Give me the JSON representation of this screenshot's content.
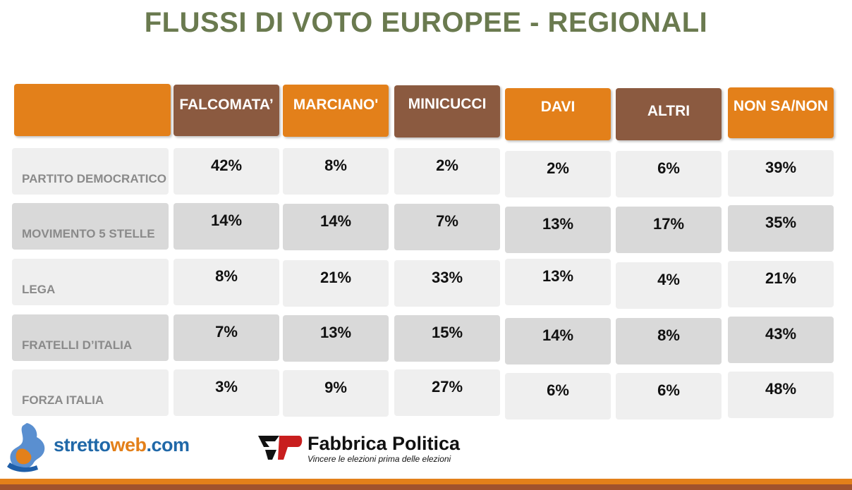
{
  "title": "FLUSSI DI VOTO EUROPEE - REGIONALI",
  "chart_data": {
    "type": "table",
    "title": "FLUSSI DI VOTO EUROPEE - REGIONALI",
    "columns": [
      "FALCOMATA’",
      "MARCIANO'",
      "MINICUCCI",
      "DAVI",
      "ALTRI",
      "NON SA/NON"
    ],
    "rows": [
      {
        "label": "PARTITO DEMOCRATICO",
        "values": [
          "42%",
          "8%",
          "2%",
          "2%",
          "6%",
          "39%"
        ]
      },
      {
        "label": "MOVIMENTO 5 STELLE",
        "values": [
          "14%",
          "14%",
          "7%",
          "13%",
          "17%",
          "35%"
        ]
      },
      {
        "label": "LEGA",
        "values": [
          "8%",
          "21%",
          "33%",
          "13%",
          "4%",
          "21%"
        ]
      },
      {
        "label": "FRATELLI D’ITALIA",
        "values": [
          "7%",
          "13%",
          "15%",
          "14%",
          "8%",
          "43%"
        ]
      },
      {
        "label": "FORZA ITALIA",
        "values": [
          "3%",
          "9%",
          "27%",
          "6%",
          "6%",
          "48%"
        ]
      }
    ]
  },
  "header_colors": [
    "orange",
    "brown",
    "orange",
    "brown",
    "orange",
    "brown",
    "orange"
  ],
  "colors": {
    "title": "#6a7a4f",
    "orange": "#e3801a",
    "brown": "#8b5a40",
    "cell_light": "#efefef",
    "cell_dark": "#d9d9d9",
    "row_label": "#8a8a8a"
  },
  "logos": {
    "strettoweb": {
      "part1": "stretto",
      "part2": "web",
      "part3": ".com"
    },
    "fabbrica": {
      "name": "Fabbrica Politica",
      "tagline": "Vincere le elezioni prima delle elezioni"
    }
  }
}
